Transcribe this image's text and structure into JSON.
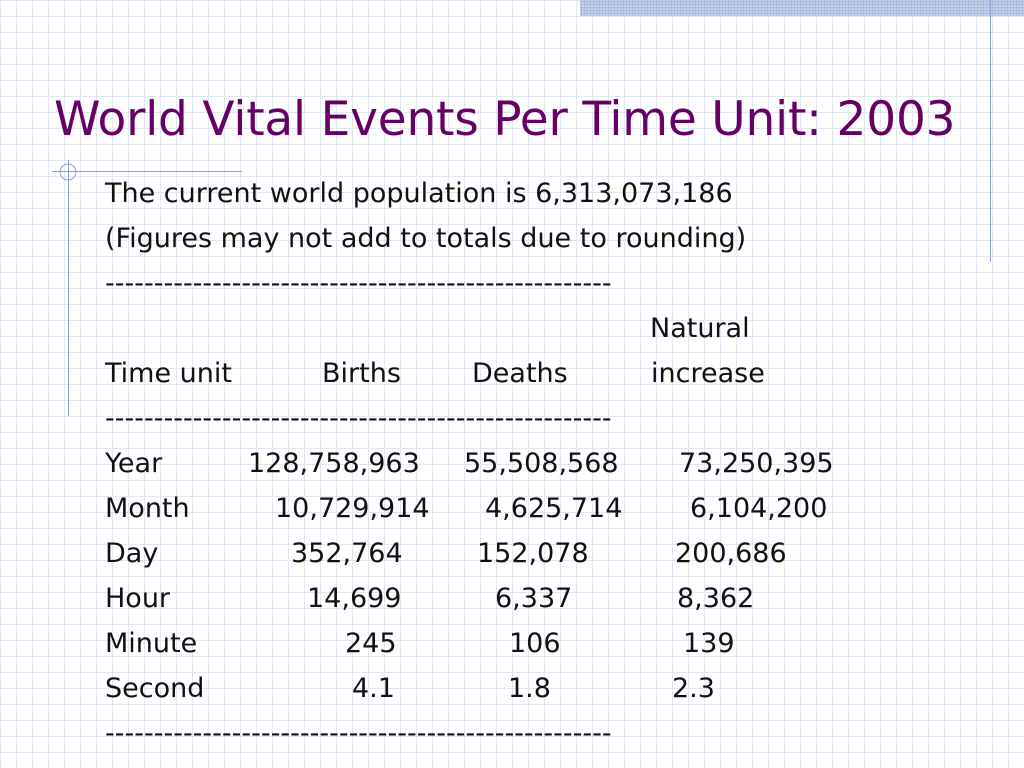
{
  "title": "World Vital Events Per Time Unit: 2003",
  "intro": [
    "The current world population is 6,313,073,186",
    "(Figures may not add to totals due to rounding)"
  ],
  "divider": "----------------------------------------------------",
  "header": {
    "natural_top": "Natural",
    "time_unit": "Time unit",
    "births": "Births",
    "deaths": "Deaths",
    "increase": "increase"
  },
  "rows": [
    {
      "unit": "Year",
      "births": "128,758,963",
      "deaths": "55,508,568",
      "increase": "73,250,395"
    },
    {
      "unit": "Month",
      "births": "10,729,914",
      "deaths": "4,625,714",
      "increase": "6,104,200"
    },
    {
      "unit": "Day",
      "births": "352,764",
      "deaths": "152,078",
      "increase": "200,686"
    },
    {
      "unit": "Hour",
      "births": "14,699",
      "deaths": "6,337",
      "increase": "8,362"
    },
    {
      "unit": "Minute",
      "births": "245",
      "deaths": "106",
      "increase": "139"
    },
    {
      "unit": "Second",
      "births": "4.1",
      "deaths": "1.8",
      "increase": "2.3"
    }
  ]
}
